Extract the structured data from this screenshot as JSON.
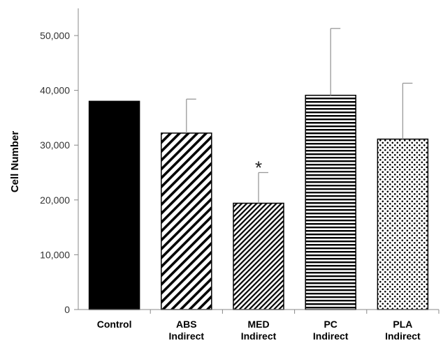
{
  "chart_data": {
    "type": "bar",
    "title": "",
    "xlabel": "",
    "ylabel": "Cell Number",
    "ylim": [
      0,
      50000
    ],
    "yticks": [
      0,
      10000,
      20000,
      30000,
      40000,
      50000
    ],
    "ytick_labels": [
      "0",
      "10,000",
      "20,000",
      "30,000",
      "40,000",
      "50,000"
    ],
    "categories": [
      [
        "Control"
      ],
      [
        "ABS",
        "Indirect"
      ],
      [
        "MED",
        "Indirect"
      ],
      [
        "PC",
        "Indirect"
      ],
      [
        "PLA",
        "Indirect"
      ]
    ],
    "values": [
      38000,
      32200,
      19400,
      39100,
      31100
    ],
    "error_upper": [
      null,
      38400,
      25000,
      51300,
      41300
    ],
    "patterns": [
      "solid",
      "diagonal-wide",
      "diagonal-dense",
      "horizontal",
      "dots"
    ],
    "annotations": [
      {
        "category_index": 2,
        "text": "*"
      }
    ],
    "grid": false,
    "legend": "none",
    "colors": {
      "bar_fill": "#000000",
      "bar_background": "#ffffff",
      "axis": "#888888",
      "error_bar": "#999999"
    }
  }
}
